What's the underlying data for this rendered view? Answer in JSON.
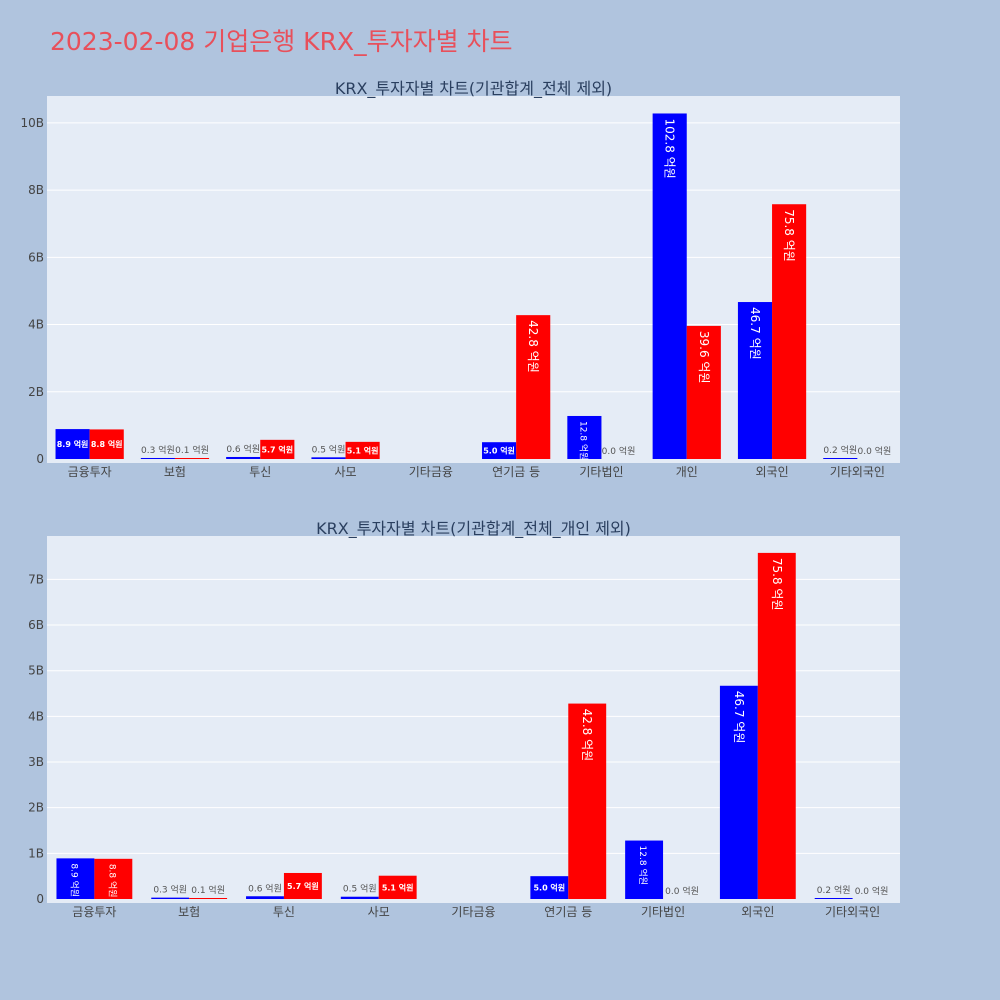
{
  "page": {
    "title": "2023-02-08 기업은행 KRX_투자자별 차트"
  },
  "colors": {
    "buy": "#0000ff",
    "sell": "#ff0000",
    "plot_bg": "#e5ecf6",
    "page_bg": "#b0c4de",
    "title": "#e8505b"
  },
  "chart_data": [
    {
      "type": "bar",
      "title": "KRX_투자자별 차트(기관합계_전체 제외)",
      "categories": [
        "금융투자",
        "보험",
        "투신",
        "사모",
        "기타금융",
        "연기금 등",
        "기타법인",
        "개인",
        "외국인",
        "기타외국인"
      ],
      "series": [
        {
          "color": "#0000ff",
          "values": [
            0.89,
            0.03,
            0.06,
            0.05,
            0,
            0.5,
            1.28,
            10.28,
            4.67,
            0.02
          ],
          "labels": [
            "8.9 억원",
            "0.3 억원",
            "0.6 억원",
            "0.5 억원",
            "",
            "5.0 억원",
            "12.8 억원",
            "102.8 억원",
            "46.7 억원",
            "0.2 억원"
          ]
        },
        {
          "color": "#ff0000",
          "values": [
            0.88,
            0.01,
            0.57,
            0.51,
            0,
            4.28,
            0.0,
            3.96,
            7.58,
            0.0
          ],
          "labels": [
            "8.8 억원",
            "0.1 억원",
            "5.7 억원",
            "5.1 억원",
            "",
            "42.8 억원",
            "0.0 억원",
            "39.6 억원",
            "75.8 억원",
            "0.0 억원"
          ]
        }
      ],
      "ylim": [
        0,
        10.8
      ],
      "yticks": [
        0,
        2,
        4,
        6,
        8,
        10
      ],
      "ytick_labels": [
        "0",
        "2B",
        "4B",
        "6B",
        "8B",
        "10B"
      ],
      "grid": true,
      "legend": "none"
    },
    {
      "type": "bar",
      "title": "KRX_투자자별 차트(기관합계_전체_개인 제외)",
      "categories": [
        "금융투자",
        "보험",
        "투신",
        "사모",
        "기타금융",
        "연기금 등",
        "기타법인",
        "외국인",
        "기타외국인"
      ],
      "series": [
        {
          "color": "#0000ff",
          "values": [
            0.89,
            0.03,
            0.06,
            0.05,
            0,
            0.5,
            1.28,
            4.67,
            0.02
          ],
          "labels": [
            "8.9 억원",
            "0.3 억원",
            "0.6 억원",
            "0.5 억원",
            "",
            "5.0 억원",
            "12.8 억원",
            "46.7 억원",
            "0.2 억원"
          ]
        },
        {
          "color": "#ff0000",
          "values": [
            0.88,
            0.01,
            0.57,
            0.51,
            0,
            4.28,
            0.0,
            7.58,
            0.0
          ],
          "labels": [
            "8.8 억원",
            "0.1 억원",
            "5.7 억원",
            "5.1 억원",
            "",
            "42.8 억원",
            "0.0 억원",
            "75.8 억원",
            "0.0 억원"
          ]
        }
      ],
      "ylim": [
        0,
        7.95
      ],
      "yticks": [
        0,
        1,
        2,
        3,
        4,
        5,
        6,
        7
      ],
      "ytick_labels": [
        "0",
        "1B",
        "2B",
        "3B",
        "4B",
        "5B",
        "6B",
        "7B"
      ],
      "grid": true,
      "legend": "none"
    }
  ]
}
